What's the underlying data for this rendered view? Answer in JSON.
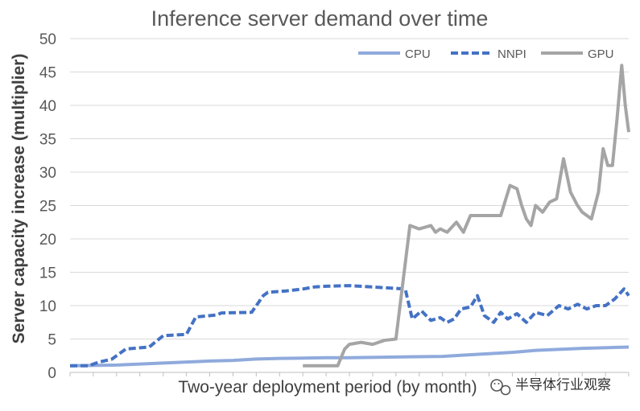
{
  "chart_data": {
    "type": "line",
    "title": "Inference server demand over time",
    "xlabel": "Two-year deployment period (by month)",
    "ylabel": "Server capacity increase (multiplier)",
    "ylim": [
      0,
      50
    ],
    "yticks": [
      0,
      5,
      10,
      15,
      20,
      25,
      30,
      35,
      40,
      45,
      50
    ],
    "x_months": 24,
    "grid": true,
    "legend_position": "top-right",
    "series": [
      {
        "name": "CPU",
        "color": "#8FAADC",
        "style": "solid",
        "x": [
          0,
          2,
          4,
          6,
          7,
          8,
          9,
          10,
          11,
          12,
          14,
          16,
          17,
          18,
          19,
          20,
          22,
          24
        ],
        "y": [
          1.0,
          1.1,
          1.4,
          1.7,
          1.8,
          2.0,
          2.1,
          2.15,
          2.2,
          2.2,
          2.3,
          2.4,
          2.6,
          2.8,
          3.0,
          3.3,
          3.6,
          3.8
        ]
      },
      {
        "name": "NNPI",
        "color": "#4472C4",
        "style": "dashed",
        "x": [
          0,
          0.8,
          1.2,
          1.8,
          2.4,
          3.4,
          4.0,
          5.0,
          5.4,
          6.3,
          6.5,
          7.8,
          8.3,
          8.5,
          9.3,
          10.0,
          10.5,
          11.0,
          12.0,
          13.0,
          14.4,
          14.7,
          15.1,
          15.5,
          15.9,
          16.2,
          16.5,
          16.8,
          17.2,
          17.5,
          17.8,
          18.2,
          18.5,
          18.8,
          19.2,
          19.6,
          20.0,
          20.5,
          21.0,
          21.4,
          21.8,
          22.2,
          22.6,
          23.0,
          23.4,
          23.8,
          24.0
        ],
        "y": [
          1.0,
          1.0,
          1.5,
          2.0,
          3.5,
          3.8,
          5.5,
          5.7,
          8.3,
          8.6,
          8.9,
          9.0,
          11.5,
          12.0,
          12.2,
          12.5,
          12.8,
          12.9,
          13.0,
          12.8,
          12.5,
          8.0,
          9.2,
          7.8,
          8.2,
          7.5,
          8.0,
          9.5,
          9.8,
          11.5,
          8.5,
          7.5,
          9.0,
          8.0,
          8.8,
          7.5,
          9.0,
          8.5,
          10.0,
          9.5,
          10.2,
          9.5,
          10.0,
          10.0,
          11.0,
          12.5,
          11.5
        ]
      },
      {
        "name": "GPU",
        "color": "#A5A5A5",
        "style": "solid",
        "x": [
          10.0,
          11.5,
          11.8,
          12.0,
          12.5,
          13.0,
          13.5,
          14.0,
          14.6,
          15.0,
          15.5,
          15.7,
          15.9,
          16.2,
          16.6,
          16.9,
          17.2,
          17.5,
          18.0,
          18.5,
          18.9,
          19.2,
          19.4,
          19.6,
          19.8,
          20.0,
          20.3,
          20.6,
          20.9,
          21.2,
          21.5,
          21.8,
          22.0,
          22.4,
          22.7,
          22.9,
          23.1,
          23.3,
          23.5,
          23.7,
          23.85,
          24.0
        ],
        "y": [
          1.0,
          1.0,
          3.5,
          4.2,
          4.5,
          4.2,
          4.8,
          5.0,
          22.0,
          21.5,
          22.0,
          21.0,
          21.5,
          21.0,
          22.5,
          21.0,
          23.5,
          23.5,
          23.5,
          23.5,
          28.0,
          27.5,
          25.0,
          23.0,
          22.0,
          25.0,
          24.0,
          25.5,
          26.0,
          32.0,
          27.0,
          25.0,
          24.0,
          23.0,
          27.0,
          33.5,
          31.0,
          31.0,
          38.0,
          46.0,
          40.0,
          36.0
        ]
      }
    ]
  },
  "watermark": {
    "icon": "wechat-icon",
    "text": "半导体行业观察"
  }
}
